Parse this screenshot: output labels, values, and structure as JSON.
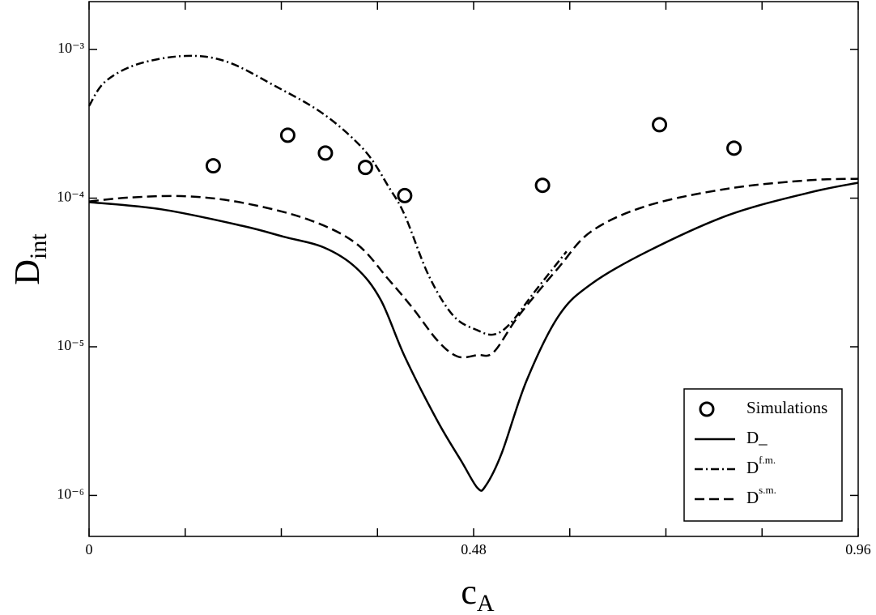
{
  "chart_data": {
    "type": "line",
    "x_label": "c",
    "x_label_subscript": "A",
    "y_label": "D",
    "y_label_subscript": "int",
    "xlim": [
      0,
      0.96
    ],
    "xticks": [
      0,
      0.48,
      0.96
    ],
    "x_minor_ticks": [
      0.12,
      0.24,
      0.36,
      0.6,
      0.72,
      0.84
    ],
    "ylim": [
      5.3e-07,
      0.0021
    ],
    "log_y": true,
    "yticks": [
      {
        "value": 1e-06,
        "label": "10⁻⁶"
      },
      {
        "value": 1e-05,
        "label": "10⁻⁵"
      },
      {
        "value": 0.0001,
        "label": "10⁻⁴"
      },
      {
        "value": 0.001,
        "label": "10⁻³"
      }
    ],
    "legend": "lower right",
    "series": [
      {
        "name": "Simulations",
        "kind": "scatter",
        "color": "#000000",
        "x": [
          0.155,
          0.248,
          0.295,
          0.345,
          0.394,
          0.566,
          0.712,
          0.805
        ],
        "values": [
          0.000165,
          0.000265,
          0.000201,
          0.000161,
          0.000104,
          0.000122,
          0.000312,
          0.000217
        ]
      },
      {
        "name": "D_",
        "kind": "line",
        "color": "#000000",
        "dash": "none",
        "x": [
          0,
          0.091,
          0.192,
          0.243,
          0.293,
          0.333,
          0.364,
          0.394,
          0.435,
          0.465,
          0.485,
          0.495,
          0.515,
          0.546,
          0.586,
          0.627,
          0.697,
          0.798,
          0.899,
          0.96
        ],
        "values": [
          9.4e-05,
          8.4e-05,
          6.5e-05,
          5.5e-05,
          4.66e-05,
          3.41e-05,
          2.07e-05,
          8.6e-06,
          3.16e-06,
          1.69e-06,
          1.12e-06,
          1.16e-06,
          1.92e-06,
          5.9e-06,
          1.61e-05,
          2.65e-05,
          4.38e-05,
          7.69e-05,
          0.000109,
          0.000127
        ]
      },
      {
        "name": "D",
        "name_superscript": "f.m.",
        "kind": "line",
        "color": "#000000",
        "dash": "10,4,2,4",
        "x": [
          0,
          0.02,
          0.061,
          0.121,
          0.172,
          0.232,
          0.293,
          0.344,
          0.374,
          0.394,
          0.424,
          0.455,
          0.485,
          0.505,
          0.525,
          0.556,
          0.596
        ],
        "values": [
          0.000417,
          0.000607,
          0.000798,
          0.000906,
          0.000828,
          0.000569,
          0.000367,
          0.000209,
          0.000119,
          7.69e-05,
          3.01e-05,
          1.61e-05,
          1.29e-05,
          1.21e-05,
          1.42e-05,
          2.34e-05,
          4.38e-05
        ]
      },
      {
        "name": "D",
        "name_superscript": "s.m.",
        "kind": "line",
        "color": "#000000",
        "dash": "12,6",
        "x": [
          0,
          0.051,
          0.121,
          0.192,
          0.273,
          0.333,
          0.374,
          0.404,
          0.435,
          0.46,
          0.485,
          0.505,
          0.536,
          0.586,
          0.627,
          0.697,
          0.798,
          0.899,
          0.96
        ],
        "values": [
          9.5e-05,
          0.000101,
          0.000103,
          9.3e-05,
          7.2e-05,
          4.97e-05,
          2.83e-05,
          1.82e-05,
          1.1e-05,
          8.6e-06,
          8.8e-06,
          9.2e-06,
          1.61e-05,
          3.41e-05,
          5.98e-05,
          8.9e-05,
          0.000116,
          0.000132,
          0.000135
        ]
      }
    ]
  }
}
